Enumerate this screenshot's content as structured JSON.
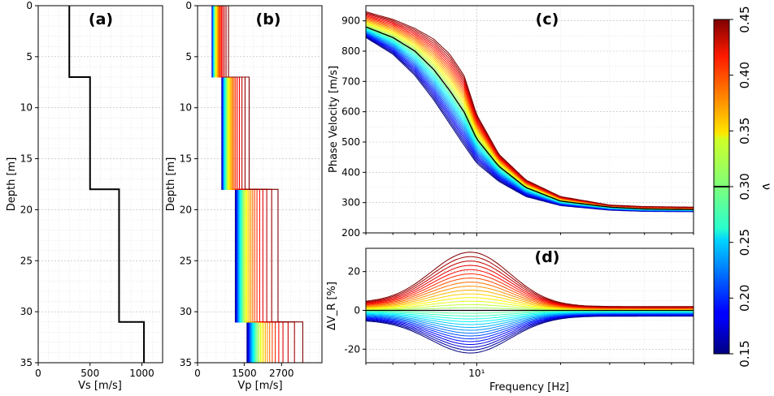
{
  "chart_data": [
    {
      "type": "line",
      "panel": "a",
      "label": "(a)",
      "xlabel": "Vs [m/s]",
      "ylabel": "Depth [m]",
      "xlim": [
        0,
        1200
      ],
      "ylim": [
        35,
        0
      ],
      "xticks": [
        0,
        500,
        1000
      ],
      "yticks": [
        0,
        5,
        10,
        15,
        20,
        25,
        30,
        35
      ],
      "layers": [
        {
          "top": 0,
          "bottom": 7,
          "vs": 300
        },
        {
          "top": 7,
          "bottom": 18,
          "vs": 500
        },
        {
          "top": 18,
          "bottom": 31,
          "vs": 780
        },
        {
          "top": 31,
          "bottom": 35,
          "vs": 1020
        }
      ]
    },
    {
      "type": "line",
      "panel": "b",
      "label": "(b)",
      "xlabel": "Vp [m/s]",
      "ylabel": "Depth [m]",
      "xlim": [
        0,
        4000
      ],
      "ylim": [
        35,
        0
      ],
      "xticks": [
        0,
        1500,
        2700
      ],
      "yticks": [
        0,
        5,
        10,
        15,
        20,
        25,
        30,
        35
      ],
      "poisson_range": [
        0.15,
        0.45
      ],
      "n_curves": 31
    },
    {
      "type": "line",
      "panel": "c",
      "label": "(c)",
      "xlabel": "",
      "ylabel": "Phase Velocity [m/s]",
      "xscale": "log",
      "xlim": [
        4,
        60
      ],
      "ylim": [
        200,
        950
      ],
      "yticks": [
        200,
        300,
        400,
        500,
        600,
        700,
        800,
        900
      ],
      "reference_nu": 0.3,
      "series_low_nu": {
        "name": "nu=0.15",
        "x": [
          4,
          5,
          6,
          7,
          8,
          9,
          10,
          12,
          15,
          20,
          30,
          40,
          60
        ],
        "y": [
          845,
          790,
          720,
          640,
          560,
          490,
          430,
          370,
          320,
          290,
          275,
          271,
          270
        ]
      },
      "series_ref_nu": {
        "name": "nu=0.30",
        "x": [
          4,
          5,
          6,
          7,
          8,
          9,
          10,
          12,
          15,
          20,
          30,
          40,
          60
        ],
        "y": [
          880,
          845,
          800,
          740,
          670,
          600,
          510,
          420,
          350,
          305,
          285,
          279,
          277
        ]
      },
      "series_high_nu": {
        "name": "nu=0.45",
        "x": [
          4,
          5,
          6,
          7,
          8,
          9,
          10,
          12,
          15,
          20,
          30,
          40,
          60
        ],
        "y": [
          930,
          905,
          875,
          840,
          790,
          720,
          590,
          460,
          375,
          320,
          292,
          287,
          285
        ]
      }
    },
    {
      "type": "line",
      "panel": "d",
      "label": "(d)",
      "xlabel": "Frequency [Hz]",
      "ylabel": "ΔV_R [%]",
      "xscale": "log",
      "xlim": [
        4,
        60
      ],
      "ylim": [
        -27,
        32
      ],
      "yticks": [
        -20,
        0,
        20
      ],
      "xtick_label": "10¹",
      "peak_frequency_hz": 9.5,
      "max_positive_pct": 30,
      "max_negative_pct": -22,
      "low_frequency_positive_pct": 4,
      "low_frequency_negative_pct": -5,
      "high_frequency_positive_pct": 2,
      "high_frequency_negative_pct": -3
    }
  ],
  "colorbar": {
    "label": "ν",
    "min": 0.15,
    "max": 0.45,
    "ticks": [
      "0.15",
      "0.20",
      "0.25",
      "0.30",
      "0.35",
      "0.40",
      "0.45"
    ],
    "reference_value": 0.3
  }
}
